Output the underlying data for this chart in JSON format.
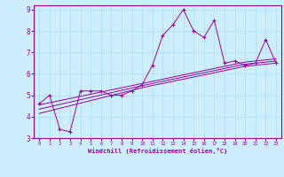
{
  "xlabel": "Windchill (Refroidissement éolien,°C)",
  "ylabel": "",
  "bg_color": "#cceeff",
  "line_color": "#990099",
  "grid_color": "#aaddee",
  "x_data": [
    0,
    1,
    2,
    3,
    4,
    5,
    6,
    7,
    8,
    9,
    10,
    11,
    12,
    13,
    14,
    15,
    16,
    17,
    18,
    19,
    20,
    21,
    22,
    23
  ],
  "y_main": [
    4.6,
    5.0,
    3.4,
    3.3,
    5.2,
    5.2,
    5.2,
    5.0,
    5.0,
    5.2,
    5.5,
    6.4,
    7.8,
    8.3,
    9.0,
    8.0,
    7.7,
    8.5,
    6.5,
    6.6,
    6.4,
    6.5,
    7.6,
    6.5
  ],
  "trend1": [
    4.55,
    4.65,
    4.75,
    4.85,
    4.95,
    5.05,
    5.15,
    5.25,
    5.35,
    5.45,
    5.55,
    5.65,
    5.75,
    5.85,
    5.95,
    6.05,
    6.15,
    6.25,
    6.35,
    6.45,
    6.55,
    6.6,
    6.65,
    6.7
  ],
  "trend2": [
    4.35,
    4.46,
    4.57,
    4.68,
    4.79,
    4.9,
    5.01,
    5.12,
    5.23,
    5.34,
    5.45,
    5.55,
    5.65,
    5.75,
    5.85,
    5.95,
    6.05,
    6.15,
    6.25,
    6.35,
    6.45,
    6.5,
    6.55,
    6.6
  ],
  "trend3": [
    4.15,
    4.27,
    4.39,
    4.51,
    4.63,
    4.75,
    4.87,
    4.99,
    5.11,
    5.23,
    5.35,
    5.46,
    5.55,
    5.65,
    5.75,
    5.85,
    5.95,
    6.05,
    6.15,
    6.25,
    6.35,
    6.4,
    6.45,
    6.5
  ],
  "ylim": [
    3.0,
    9.2
  ],
  "xlim": [
    -0.5,
    23.5
  ],
  "yticks": [
    3,
    4,
    5,
    6,
    7,
    8,
    9
  ],
  "xticks": [
    0,
    1,
    2,
    3,
    4,
    5,
    6,
    7,
    8,
    9,
    10,
    11,
    12,
    13,
    14,
    15,
    16,
    17,
    18,
    19,
    20,
    21,
    22,
    23
  ]
}
